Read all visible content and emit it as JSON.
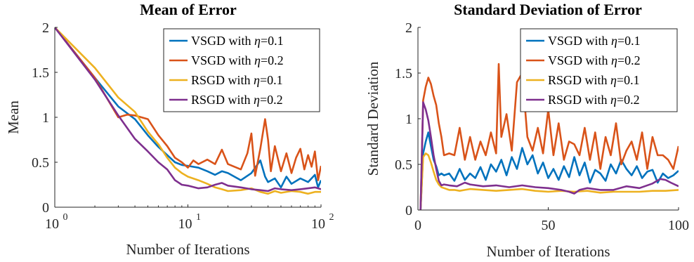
{
  "chart_data": [
    {
      "type": "line",
      "title": "Mean of Error",
      "xlabel": "Number of Iterations",
      "ylabel": "Mean",
      "xscale": "log",
      "xlim": [
        1,
        100
      ],
      "ylim": [
        0,
        2
      ],
      "yticks": [
        0,
        0.5,
        1,
        1.5,
        2
      ],
      "ytick_labels": [
        "0",
        "0.5",
        "1",
        "1.5",
        "2"
      ],
      "xticks": [
        1,
        10,
        100
      ],
      "xtick_labels": [
        {
          "base": "10",
          "exp": "0"
        },
        {
          "base": "10",
          "exp": "1"
        },
        {
          "base": "10",
          "exp": "2"
        }
      ],
      "legend_position": "top-right",
      "grid": false,
      "series": [
        {
          "name": "VSGD with η=0.1",
          "legend_prefix": "VSGD with ",
          "legend_suffix": "=0.1",
          "color": "#0072BD",
          "x": [
            1,
            2,
            3,
            4,
            5,
            6,
            7,
            8,
            9,
            10,
            12,
            14,
            16,
            18,
            20,
            25,
            30,
            35,
            38,
            40,
            45,
            50,
            55,
            60,
            70,
            80,
            90,
            95,
            100
          ],
          "y": [
            2,
            1.44,
            1.12,
            0.98,
            0.8,
            0.67,
            0.58,
            0.5,
            0.47,
            0.46,
            0.44,
            0.4,
            0.36,
            0.4,
            0.38,
            0.3,
            0.38,
            0.52,
            0.34,
            0.28,
            0.32,
            0.22,
            0.34,
            0.26,
            0.32,
            0.28,
            0.36,
            0.22,
            0.3
          ]
        },
        {
          "name": "VSGD with η=0.2",
          "legend_prefix": "VSGD with ",
          "legend_suffix": "=0.2",
          "color": "#D95319",
          "x": [
            1,
            2,
            3,
            3.5,
            4,
            5,
            6,
            7,
            8,
            9,
            10,
            11,
            12,
            14,
            16,
            18,
            20,
            25,
            28,
            30,
            32,
            35,
            38,
            40,
            42,
            45,
            50,
            55,
            60,
            65,
            70,
            75,
            80,
            85,
            90,
            95,
            100
          ],
          "y": [
            2,
            1.44,
            1.0,
            1.03,
            1.02,
            0.98,
            0.8,
            0.68,
            0.55,
            0.5,
            0.44,
            0.52,
            0.48,
            0.53,
            0.48,
            0.64,
            0.48,
            0.42,
            0.6,
            0.82,
            0.35,
            0.65,
            0.98,
            0.75,
            0.4,
            0.68,
            0.4,
            0.6,
            0.38,
            0.55,
            0.65,
            0.42,
            0.58,
            0.45,
            0.62,
            0.3,
            0.46
          ]
        },
        {
          "name": "RSGD with η=0.1",
          "legend_prefix": "RSGD with ",
          "legend_suffix": "=0.1",
          "color": "#EDB120",
          "x": [
            1,
            2,
            3,
            4,
            5,
            6,
            7,
            8,
            9,
            10,
            12,
            14,
            16,
            18,
            20,
            25,
            30,
            35,
            40,
            45,
            50,
            60,
            70,
            80,
            90,
            100
          ],
          "y": [
            2,
            1.55,
            1.22,
            1.06,
            0.84,
            0.7,
            0.55,
            0.44,
            0.38,
            0.34,
            0.3,
            0.26,
            0.22,
            0.2,
            0.18,
            0.19,
            0.21,
            0.17,
            0.15,
            0.18,
            0.16,
            0.18,
            0.17,
            0.15,
            0.17,
            0.17
          ]
        },
        {
          "name": "RSGD with η=0.2",
          "legend_prefix": "RSGD with ",
          "legend_suffix": "=0.2",
          "color": "#7E2F8E",
          "x": [
            1,
            2,
            3,
            4,
            5,
            6,
            7,
            8,
            9,
            10,
            12,
            14,
            16,
            18,
            20,
            25,
            30,
            35,
            40,
            45,
            50,
            60,
            70,
            80,
            90,
            100
          ],
          "y": [
            2,
            1.42,
            1.02,
            0.76,
            0.62,
            0.5,
            0.42,
            0.3,
            0.25,
            0.24,
            0.21,
            0.22,
            0.25,
            0.27,
            0.24,
            0.22,
            0.2,
            0.19,
            0.18,
            0.21,
            0.2,
            0.19,
            0.2,
            0.21,
            0.22,
            0.2
          ]
        }
      ]
    },
    {
      "type": "line",
      "title": "Standard Deviation of Error",
      "xlabel": "Number of Iterations",
      "ylabel": "Standard Deviation",
      "xscale": "linear",
      "xlim": [
        0,
        100
      ],
      "ylim": [
        0,
        2
      ],
      "yticks": [
        0,
        0.5,
        1,
        1.5,
        2
      ],
      "ytick_labels": [
        "0",
        "0.5",
        "1",
        "1.5",
        "2"
      ],
      "xticks": [
        0,
        50,
        100
      ],
      "xtick_labels": [
        "0",
        "50",
        "100"
      ],
      "legend_position": "top-right",
      "grid": false,
      "series": [
        {
          "name": "VSGD with η=0.1",
          "legend_prefix": "VSGD with ",
          "legend_suffix": "=0.1",
          "color": "#0072BD",
          "x": [
            1,
            2,
            3,
            4,
            5,
            6,
            7,
            8,
            9,
            10,
            12,
            14,
            16,
            18,
            20,
            22,
            24,
            26,
            28,
            30,
            32,
            34,
            36,
            38,
            40,
            42,
            44,
            46,
            48,
            50,
            52,
            54,
            56,
            58,
            60,
            62,
            64,
            66,
            68,
            70,
            72,
            74,
            76,
            78,
            80,
            82,
            84,
            86,
            88,
            90,
            92,
            94,
            96,
            98,
            100
          ],
          "y": [
            0,
            0.62,
            0.75,
            0.85,
            0.7,
            0.55,
            0.48,
            0.38,
            0.4,
            0.38,
            0.4,
            0.32,
            0.45,
            0.33,
            0.4,
            0.35,
            0.47,
            0.33,
            0.5,
            0.42,
            0.55,
            0.38,
            0.58,
            0.45,
            0.68,
            0.5,
            0.6,
            0.4,
            0.52,
            0.35,
            0.45,
            0.33,
            0.48,
            0.36,
            0.58,
            0.38,
            0.52,
            0.3,
            0.44,
            0.4,
            0.32,
            0.5,
            0.4,
            0.55,
            0.45,
            0.38,
            0.48,
            0.35,
            0.42,
            0.44,
            0.3,
            0.4,
            0.35,
            0.38,
            0.43
          ]
        },
        {
          "name": "VSGD with η=0.2",
          "legend_prefix": "VSGD with ",
          "legend_suffix": "=0.2",
          "color": "#D95319",
          "x": [
            1,
            2,
            3,
            4,
            5,
            6,
            7,
            8,
            9,
            10,
            12,
            14,
            16,
            18,
            20,
            22,
            24,
            26,
            28,
            30,
            31,
            32,
            34,
            36,
            38,
            40,
            42,
            44,
            46,
            48,
            50,
            52,
            54,
            56,
            58,
            60,
            62,
            64,
            66,
            68,
            70,
            72,
            74,
            76,
            78,
            80,
            82,
            84,
            86,
            88,
            90,
            92,
            94,
            96,
            98,
            100
          ],
          "y": [
            0,
            1.2,
            1.35,
            1.45,
            1.38,
            1.25,
            1.15,
            0.95,
            0.8,
            0.6,
            0.62,
            0.6,
            0.9,
            0.55,
            0.8,
            0.55,
            0.75,
            0.6,
            0.85,
            0.62,
            1.6,
            0.8,
            1.05,
            0.65,
            1.4,
            1.5,
            0.8,
            0.65,
            0.9,
            0.62,
            1.1,
            0.6,
            0.95,
            0.55,
            0.75,
            0.72,
            0.6,
            0.9,
            0.55,
            0.85,
            0.45,
            0.8,
            0.6,
            0.95,
            0.5,
            0.65,
            0.75,
            0.55,
            0.85,
            0.45,
            0.8,
            0.6,
            0.6,
            0.55,
            0.45,
            0.7
          ]
        },
        {
          "name": "RSGD with η=0.1",
          "legend_prefix": "RSGD with ",
          "legend_suffix": "=0.1",
          "color": "#EDB120",
          "x": [
            1,
            2,
            3,
            4,
            5,
            6,
            7,
            8,
            9,
            10,
            12,
            14,
            16,
            18,
            20,
            25,
            30,
            35,
            40,
            45,
            50,
            55,
            60,
            65,
            70,
            75,
            80,
            85,
            90,
            95,
            100
          ],
          "y": [
            0,
            0.58,
            0.62,
            0.6,
            0.52,
            0.42,
            0.33,
            0.28,
            0.25,
            0.24,
            0.22,
            0.22,
            0.21,
            0.22,
            0.23,
            0.22,
            0.21,
            0.22,
            0.23,
            0.21,
            0.2,
            0.21,
            0.2,
            0.21,
            0.19,
            0.2,
            0.2,
            0.2,
            0.21,
            0.21,
            0.22
          ]
        },
        {
          "name": "RSGD with η=0.2",
          "legend_prefix": "RSGD with ",
          "legend_suffix": "=0.2",
          "color": "#7E2F8E",
          "x": [
            1,
            2,
            3,
            4,
            5,
            6,
            7,
            8,
            9,
            10,
            12,
            15,
            18,
            20,
            25,
            30,
            35,
            40,
            45,
            50,
            55,
            58,
            60,
            62,
            65,
            70,
            75,
            80,
            85,
            90,
            93,
            95,
            97,
            100
          ],
          "y": [
            0,
            1.18,
            1.1,
            0.98,
            0.8,
            0.6,
            0.45,
            0.32,
            0.27,
            0.28,
            0.27,
            0.26,
            0.3,
            0.28,
            0.26,
            0.27,
            0.25,
            0.27,
            0.25,
            0.24,
            0.22,
            0.2,
            0.18,
            0.22,
            0.24,
            0.22,
            0.22,
            0.26,
            0.24,
            0.29,
            0.34,
            0.33,
            0.3,
            0.26
          ]
        }
      ]
    }
  ]
}
